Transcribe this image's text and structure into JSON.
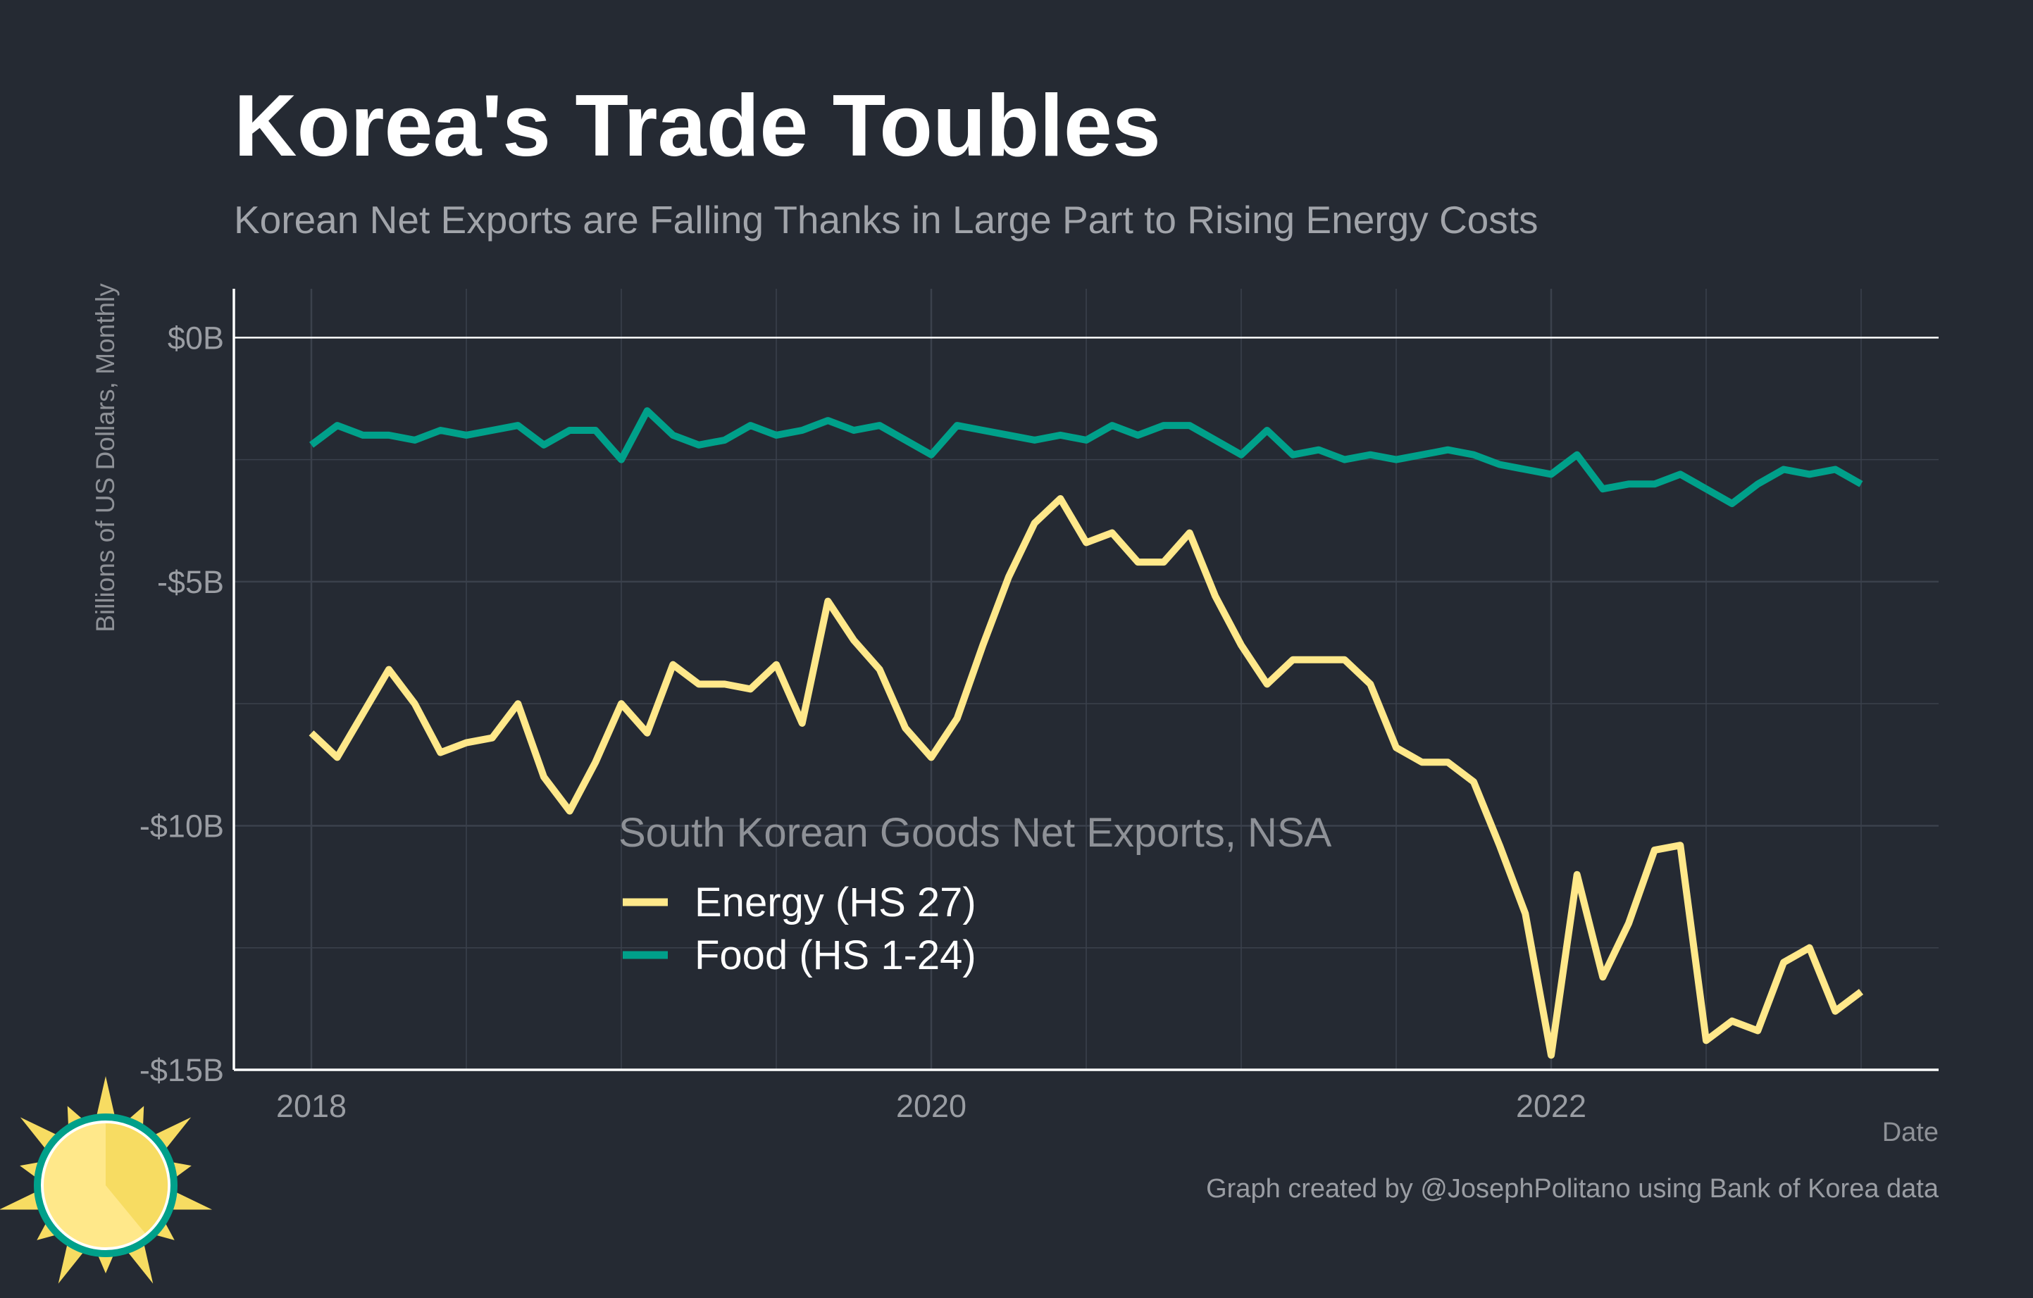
{
  "title": "Korea's Trade Toubles",
  "subtitle": "Korean Net Exports are Falling Thanks in Large Part to Rising Energy Costs",
  "caption": "Graph created by @JosephPolitano using Bank of Korea data",
  "colors": {
    "background": "#252a33",
    "energy": "#ffe88a",
    "food": "#00a08a",
    "grid": "#3b414c",
    "zero_line": "#ffffff"
  },
  "logo_icon": "sun-icon",
  "chart_data": {
    "type": "line",
    "xlabel": "Date",
    "ylabel": "Billions of US Dollars, Monthly",
    "xlim": [
      2017.75,
      2023.25
    ],
    "ylim": [
      -15,
      1
    ],
    "x_ticks": [
      {
        "value": 2018,
        "label": "2018"
      },
      {
        "value": 2020,
        "label": "2020"
      },
      {
        "value": 2022,
        "label": "2022"
      }
    ],
    "y_ticks": [
      {
        "value": 0,
        "label": "$0B"
      },
      {
        "value": -5,
        "label": "-$5B"
      },
      {
        "value": -10,
        "label": "-$10B"
      },
      {
        "value": -15,
        "label": "-$15B"
      }
    ],
    "grid": true,
    "legend": {
      "title": "South Korean Goods Net Exports, NSA",
      "placement": "bottom-center"
    },
    "x_start": "2018-01",
    "x_step": "1 month",
    "series": [
      {
        "name": "Energy (HS 27)",
        "color": "#ffe88a",
        "values": [
          -8.1,
          -8.6,
          -7.7,
          -6.8,
          -7.5,
          -8.5,
          -8.3,
          -8.2,
          -7.5,
          -9.0,
          -9.7,
          -8.7,
          -7.5,
          -8.1,
          -6.7,
          -7.1,
          -7.1,
          -7.2,
          -6.7,
          -7.9,
          -5.4,
          -6.2,
          -6.8,
          -8.0,
          -8.6,
          -7.8,
          -6.3,
          -4.9,
          -3.8,
          -3.3,
          -4.2,
          -4.0,
          -4.6,
          -4.6,
          -4.0,
          -5.3,
          -6.3,
          -7.1,
          -6.6,
          -6.6,
          -6.6,
          -7.1,
          -8.4,
          -8.7,
          -8.7,
          -9.1,
          -10.4,
          -11.8,
          -14.7,
          -11.0,
          -13.1,
          -12.0,
          -10.5,
          -10.4,
          -14.4,
          -14.0,
          -14.2,
          -12.8,
          -12.5,
          -13.8,
          -13.4
        ]
      },
      {
        "name": "Food (HS 1-24)",
        "color": "#00a08a",
        "values": [
          -2.2,
          -1.8,
          -2.0,
          -2.0,
          -2.1,
          -1.9,
          -2.0,
          -1.9,
          -1.8,
          -2.2,
          -1.9,
          -1.9,
          -2.5,
          -1.5,
          -2.0,
          -2.2,
          -2.1,
          -1.8,
          -2.0,
          -1.9,
          -1.7,
          -1.9,
          -1.8,
          -2.1,
          -2.4,
          -1.8,
          -1.9,
          -2.0,
          -2.1,
          -2.0,
          -2.1,
          -1.8,
          -2.0,
          -1.8,
          -1.8,
          -2.1,
          -2.4,
          -1.9,
          -2.4,
          -2.3,
          -2.5,
          -2.4,
          -2.5,
          -2.4,
          -2.3,
          -2.4,
          -2.6,
          -2.7,
          -2.8,
          -2.4,
          -3.1,
          -3.0,
          -3.0,
          -2.8,
          -3.1,
          -3.4,
          -3.0,
          -2.7,
          -2.8,
          -2.7,
          -3.0
        ]
      }
    ]
  }
}
